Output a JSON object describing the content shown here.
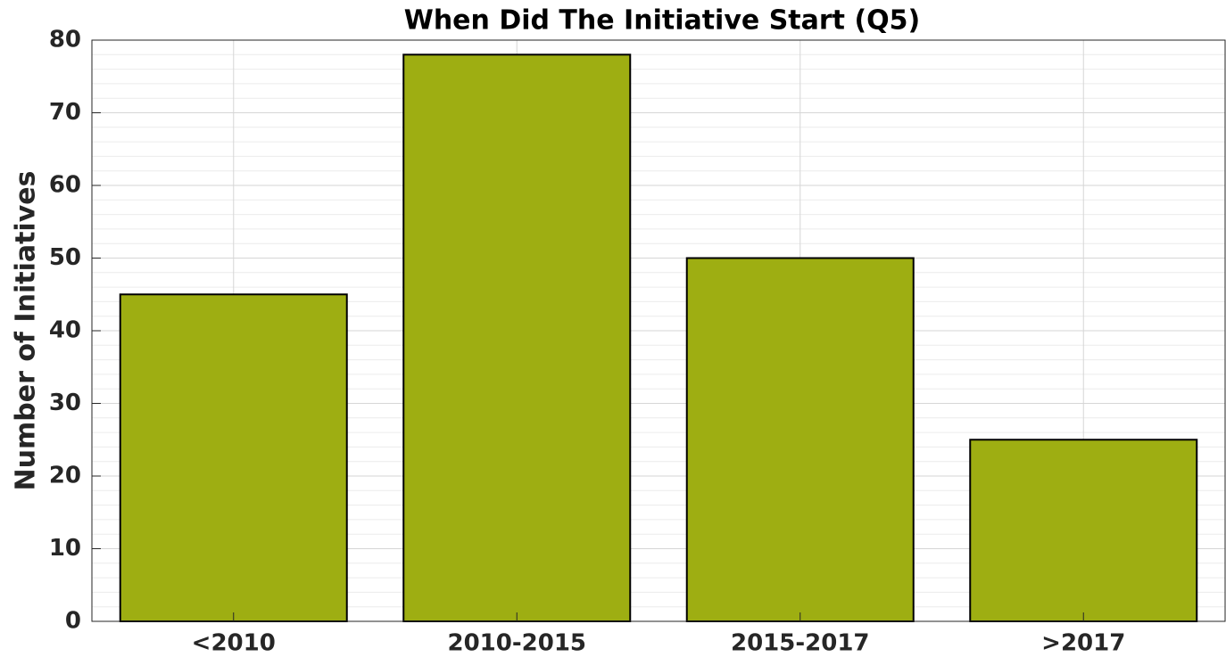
{
  "chart_data": {
    "type": "bar",
    "title": "When Did The Initiative Start (Q5)",
    "ylabel": "Number of Initiatives",
    "categories": [
      "<2010",
      "2010-2015",
      "2015-2017",
      ">2017"
    ],
    "values": [
      45,
      78,
      50,
      25
    ],
    "color": "#9eae12",
    "ylim": [
      0,
      80
    ],
    "yticks": [
      0,
      10,
      20,
      30,
      40,
      50,
      60,
      70,
      80
    ],
    "grid": true,
    "minor_grid": true
  }
}
